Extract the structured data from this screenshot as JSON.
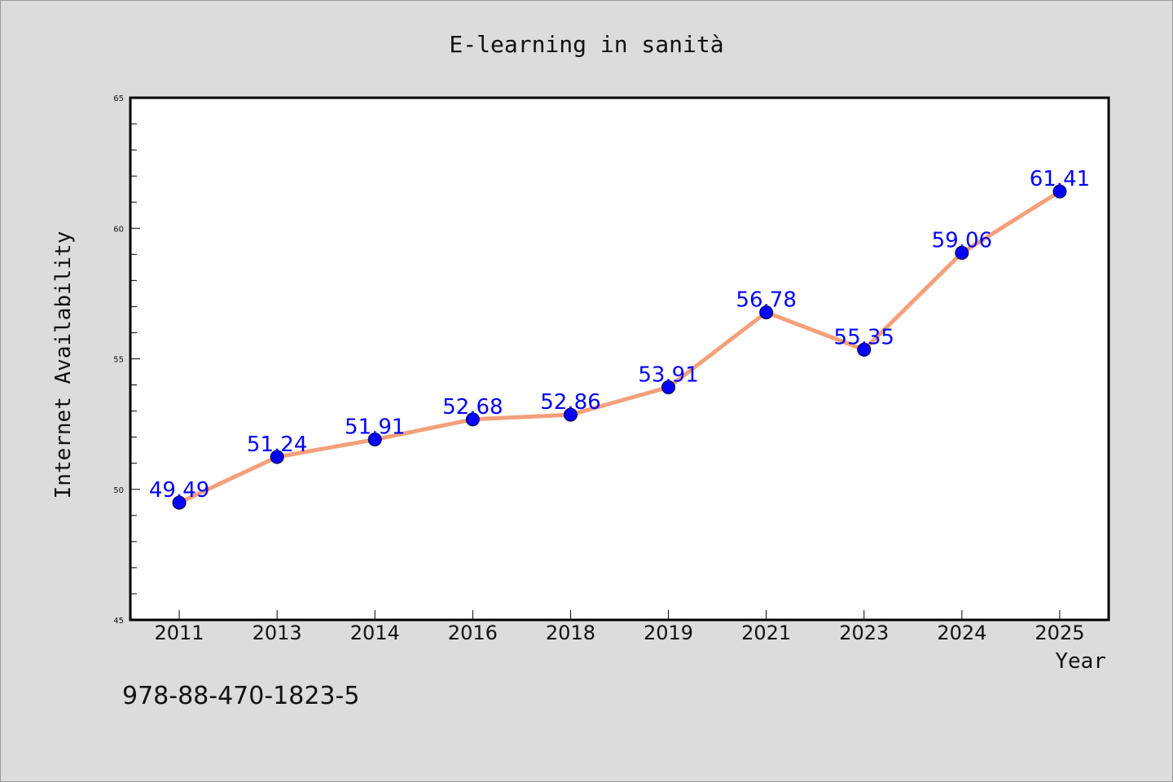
{
  "chart_data": {
    "type": "line",
    "title": "E-learning in sanità",
    "xlabel": "Year",
    "ylabel": "Internet Availability",
    "categories": [
      "2011",
      "2013",
      "2014",
      "2016",
      "2018",
      "2019",
      "2021",
      "2023",
      "2024",
      "2025"
    ],
    "series": [
      {
        "values": [
          49.49,
          51.24,
          51.91,
          52.68,
          52.86,
          53.91,
          56.78,
          55.35,
          59.06,
          61.41
        ],
        "data_labels": [
          "49.49",
          "51.24",
          "51.91",
          "52.68",
          "52.86",
          "53.91",
          "56.78",
          "55.35",
          "59.06",
          "61.41"
        ]
      }
    ],
    "ylim": [
      45,
      65
    ],
    "yticks": [
      "45",
      "50",
      "55",
      "60",
      "65"
    ],
    "grid": false,
    "legend": "none",
    "colors": {
      "line": "#f4a07a",
      "marker": "#0000ff",
      "data_label": "#0000ff",
      "background": "#dcdcdc",
      "plot_area": "#ffffff"
    }
  },
  "footnote": "978-88-470-1823-5"
}
